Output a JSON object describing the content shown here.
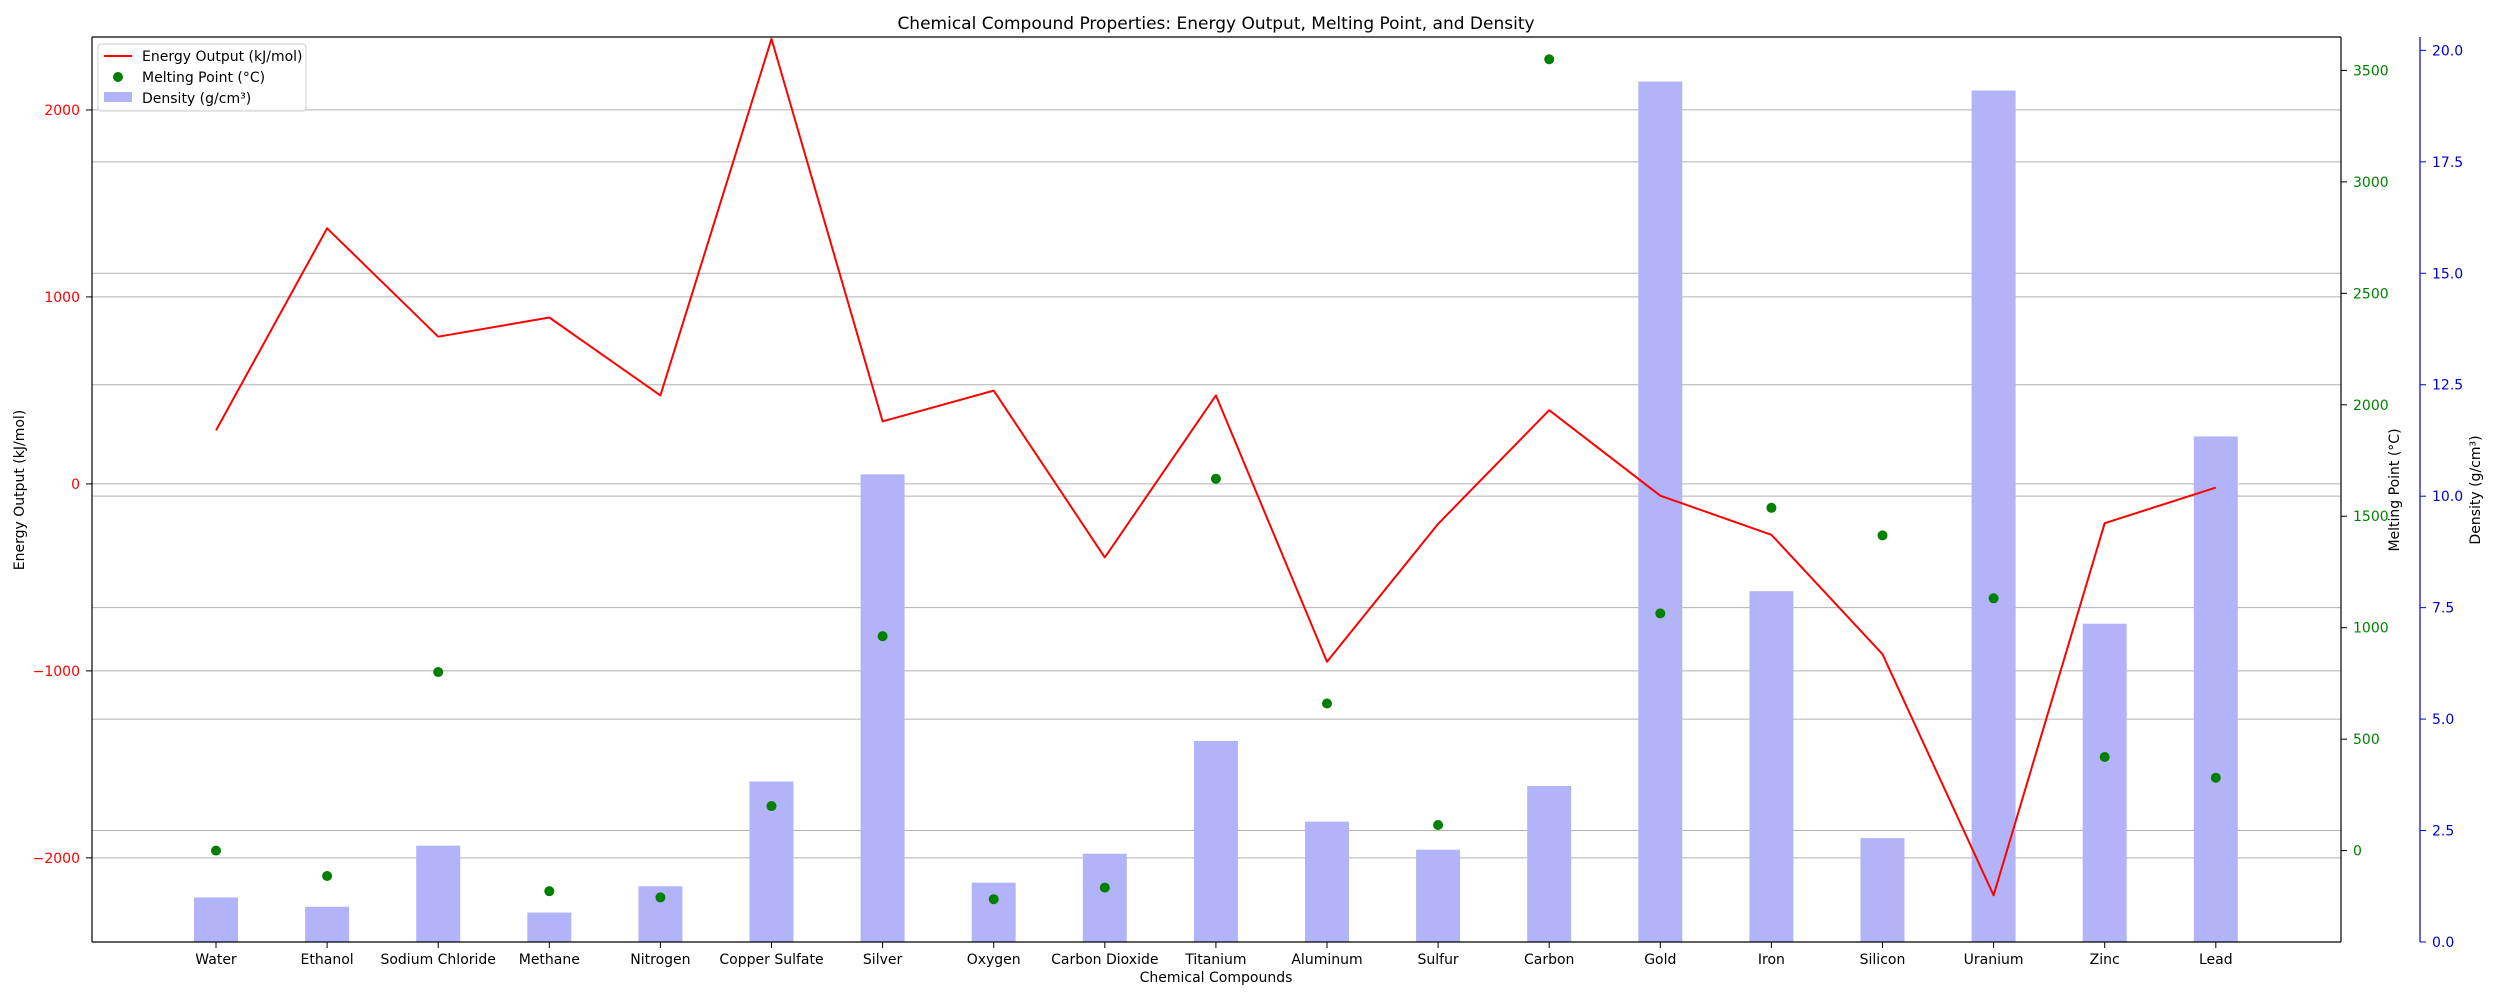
{
  "chart_data": {
    "type": "bar",
    "title": "Chemical Compound Properties: Energy Output, Melting Point, and Density",
    "xlabel": "Chemical Compounds",
    "categories": [
      "Water",
      "Ethanol",
      "Sodium Chloride",
      "Methane",
      "Nitrogen",
      "Copper Sulfate",
      "Silver",
      "Oxygen",
      "Carbon Dioxide",
      "Titanium",
      "Aluminum",
      "Sulfur",
      "Carbon",
      "Gold",
      "Iron",
      "Silicon",
      "Uranium",
      "Zinc",
      "Lead"
    ],
    "axes": {
      "energy": {
        "label": "Energy Output (kJ/mol)",
        "ylim": [
          -2450,
          2390
        ],
        "ticks": [
          -2000,
          -1000,
          0,
          1000,
          2000
        ],
        "tick_labels": [
          "−2000",
          "−1000",
          "0",
          "1000",
          "2000"
        ],
        "color": "#ff0000"
      },
      "melting": {
        "label": "Melting Point (°C)",
        "ylim": [
          -410,
          3650
        ],
        "ticks": [
          0,
          500,
          1000,
          1500,
          2000,
          2500,
          3000,
          3500
        ],
        "tick_labels": [
          "0",
          "500",
          "1000",
          "1500",
          "2000",
          "2500",
          "3000",
          "3500"
        ],
        "color": "#008000"
      },
      "density": {
        "label": "Density (g/cm³)",
        "ylim": [
          0,
          20.3
        ],
        "ticks": [
          0,
          2.5,
          5,
          7.5,
          10,
          12.5,
          15,
          17.5,
          20
        ],
        "tick_labels": [
          "0.0",
          "2.5",
          "5.0",
          "7.5",
          "10.0",
          "12.5",
          "15.0",
          "17.5",
          "20.0"
        ],
        "color": "#0000cc"
      }
    },
    "series": [
      {
        "name": "Energy Output (kJ/mol)",
        "type": "line",
        "axis": "energy",
        "color": "#ff0000",
        "values": [
          286,
          1367,
          787,
          890,
          473,
          2380,
          334,
          499,
          -393,
          473,
          -951,
          -214,
          394,
          -63,
          -272,
          -911,
          -2200,
          -210,
          -20
        ]
      },
      {
        "name": "Melting Point (°C)",
        "type": "scatter",
        "axis": "melting",
        "color": "#008000",
        "values": [
          0,
          -114,
          801,
          -182,
          -210,
          200,
          962,
          -218,
          -166,
          1668,
          660,
          115,
          3550,
          1064,
          1538,
          1414,
          1132,
          420,
          327
        ]
      },
      {
        "name": "Density (g/cm³)",
        "type": "bar",
        "axis": "density",
        "color": "#b3b3fa",
        "values": [
          1.0,
          0.79,
          2.16,
          0.66,
          1.25,
          3.6,
          10.49,
          1.33,
          1.98,
          4.51,
          2.7,
          2.07,
          3.5,
          19.3,
          7.87,
          2.33,
          19.1,
          7.14,
          11.34
        ]
      }
    ],
    "legend": {
      "placement": "top-left",
      "items": [
        "Energy Output (kJ/mol)",
        "Melting Point (°C)",
        "Density (g/cm³)"
      ]
    },
    "grid": true
  }
}
